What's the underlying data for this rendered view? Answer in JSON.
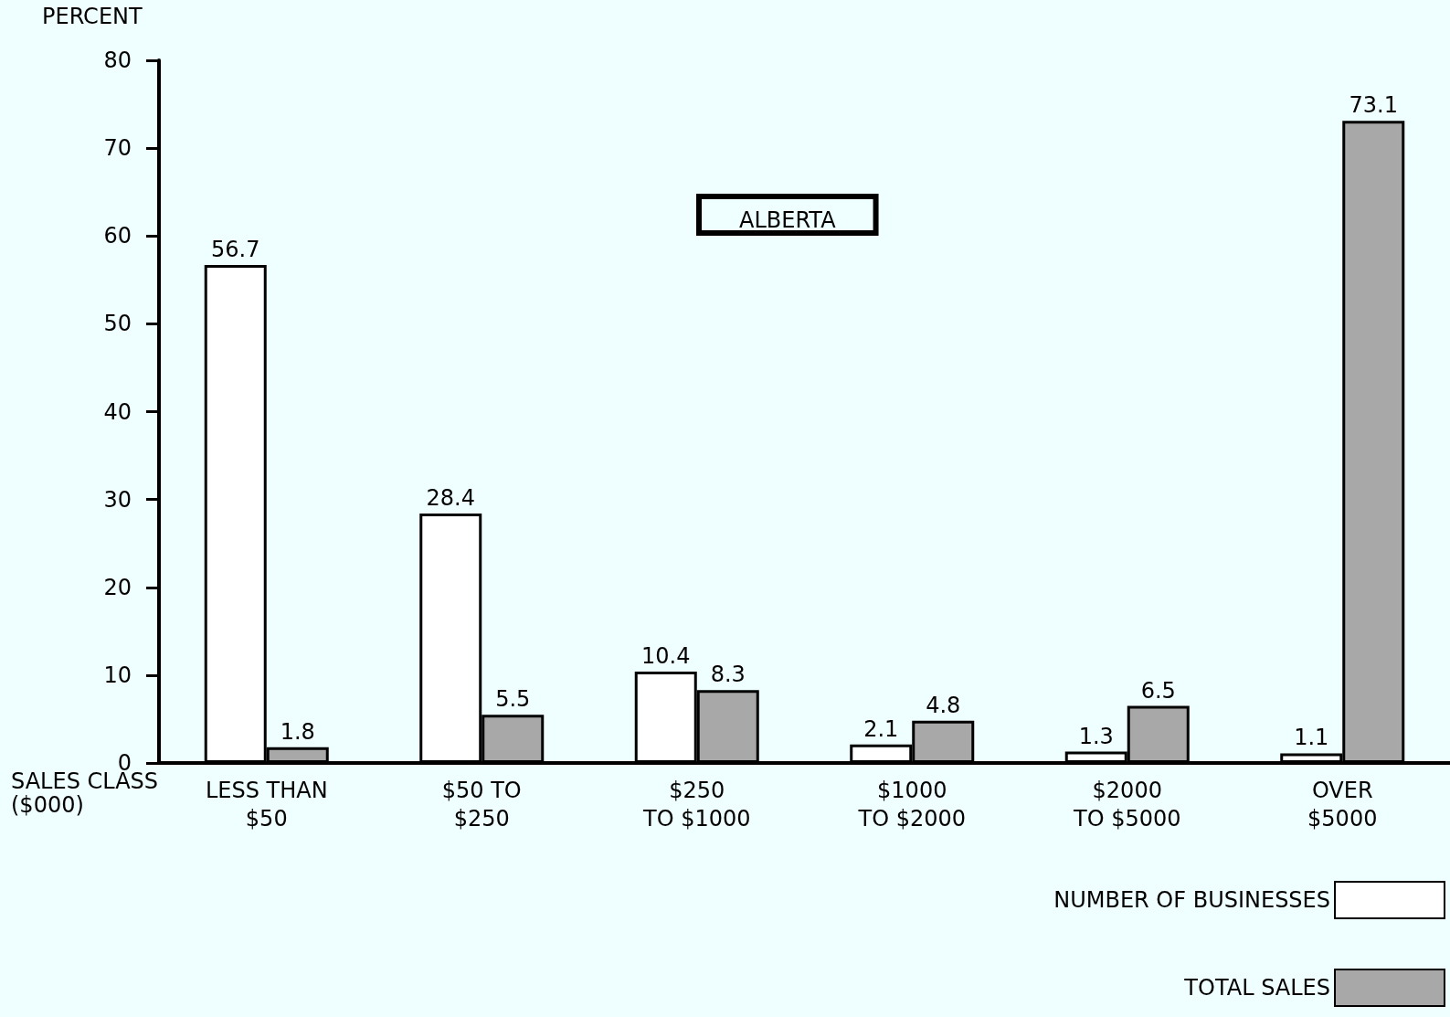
{
  "chart_data": {
    "type": "bar",
    "ylabel": "PERCENT",
    "xlabel": "SALES CLASS\n($000)",
    "annotations": [
      "ALBERTA"
    ],
    "categories": [
      "LESS THAN\n$50",
      "$50 TO\n$250",
      "$250\nTO $1000",
      "$1000\nTO $2000",
      "$2000\nTO $5000",
      "OVER\n$5000"
    ],
    "series": [
      {
        "name": "NUMBER OF BUSINESSES",
        "color": "#ffffff",
        "values": [
          56.7,
          28.4,
          10.4,
          2.1,
          1.3,
          1.1
        ]
      },
      {
        "name": "TOTAL SALES",
        "color": "#a8a8a8",
        "values": [
          1.8,
          5.5,
          8.3,
          4.8,
          6.5,
          73.1
        ]
      }
    ],
    "ylim": [
      0,
      80
    ],
    "yticks": [
      0,
      10,
      20,
      30,
      40,
      50,
      60,
      70,
      80
    ],
    "data_labels": true,
    "legend": "bottom right",
    "grid": false
  }
}
